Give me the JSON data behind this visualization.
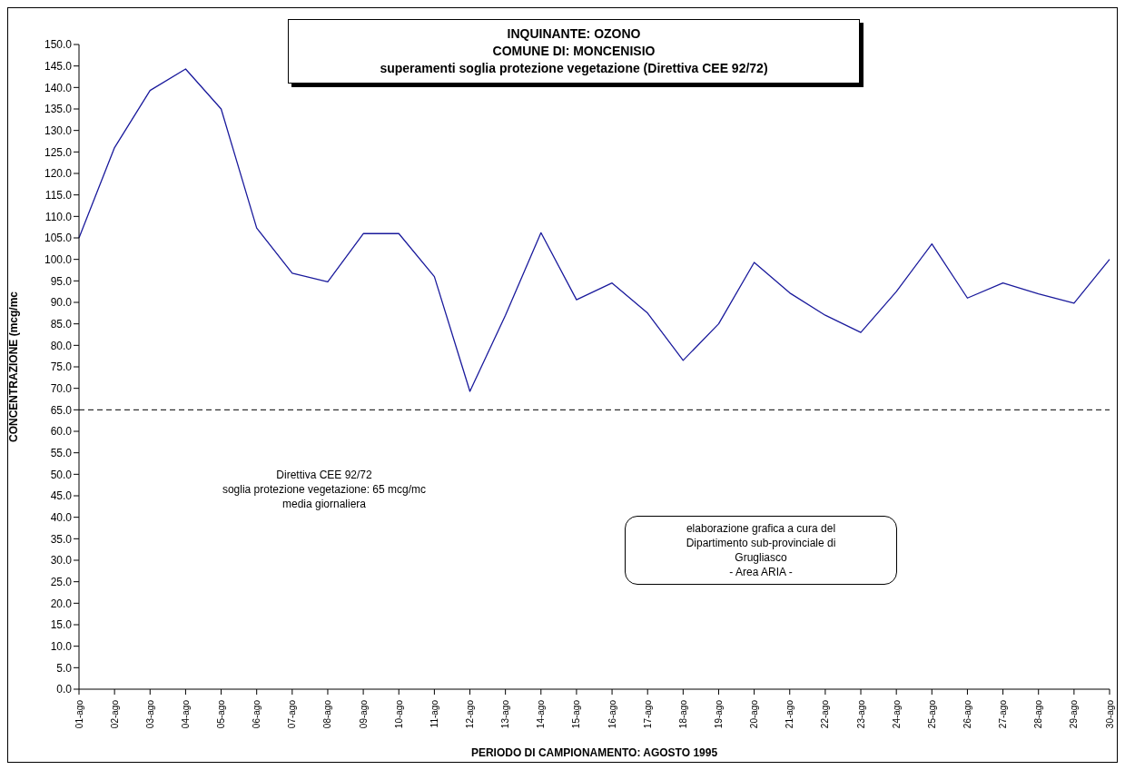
{
  "chart_data": {
    "type": "line",
    "title": "INQUINANTE: OZONO\nCOMUNE DI: MONCENISIO\nsuperamenti soglia protezione vegetazione (Direttiva CEE 92/72)",
    "xlabel": "PERIODO DI CAMPIONAMENTO: AGOSTO 1995",
    "ylabel": "CONCENTRAZIONE (mcg/mc",
    "categories": [
      "01-ago",
      "02-ago",
      "03-ago",
      "04-ago",
      "05-ago",
      "06-ago",
      "07-ago",
      "08-ago",
      "09-ago",
      "10-ago",
      "11-ago",
      "12-ago",
      "13-ago",
      "14-ago",
      "15-ago",
      "16-ago",
      "17-ago",
      "18-ago",
      "19-ago",
      "20-ago",
      "21-ago",
      "22-ago",
      "23-ago",
      "24-ago",
      "25-ago",
      "26-ago",
      "27-ago",
      "28-ago",
      "29-ago",
      "30-ago"
    ],
    "series": [
      {
        "color": "#1a1a9c",
        "values": [
          105,
          126,
          139.3,
          144.3,
          135,
          107.3,
          96.8,
          94.8,
          106,
          106,
          96,
          69.3,
          87,
          106.2,
          90.6,
          94.5,
          87.5,
          76.5,
          85,
          99.3,
          92.2,
          87,
          83,
          92.5,
          103.6,
          91,
          94.5,
          92,
          89.8,
          100
        ]
      }
    ],
    "ylim": [
      0,
      150
    ],
    "yticks": [
      {
        "value": 0,
        "label": "0.0"
      },
      {
        "value": 5,
        "label": "5.0"
      },
      {
        "value": 10,
        "label": "10.0"
      },
      {
        "value": 15,
        "label": "15.0"
      },
      {
        "value": 20,
        "label": "20.0"
      },
      {
        "value": 25,
        "label": "25.0"
      },
      {
        "value": 30,
        "label": "30.0"
      },
      {
        "value": 35,
        "label": "35.0"
      },
      {
        "value": 40,
        "label": "40.0"
      },
      {
        "value": 45,
        "label": "45.0"
      },
      {
        "value": 50,
        "label": "50.0"
      },
      {
        "value": 55,
        "label": "55.0"
      },
      {
        "value": 60,
        "label": "60.0"
      },
      {
        "value": 65,
        "label": "65.0"
      },
      {
        "value": 70,
        "label": "70.0"
      },
      {
        "value": 75,
        "label": "75.0"
      },
      {
        "value": 80,
        "label": "80.0"
      },
      {
        "value": 85,
        "label": "85.0"
      },
      {
        "value": 90,
        "label": "90.0"
      },
      {
        "value": 95,
        "label": "95.0"
      },
      {
        "value": 100,
        "label": "100.0"
      },
      {
        "value": 105,
        "label": "105.0"
      },
      {
        "value": 110,
        "label": "110.0"
      },
      {
        "value": 115,
        "label": "115.0"
      },
      {
        "value": 120,
        "label": "120.0"
      },
      {
        "value": 125,
        "label": "125.0"
      },
      {
        "value": 130,
        "label": "130.0"
      },
      {
        "value": 135,
        "label": "135.0"
      },
      {
        "value": 140,
        "label": "140.0"
      },
      {
        "value": 145,
        "label": "145.0"
      },
      {
        "value": 150,
        "label": "150.0"
      }
    ],
    "ref_lines": [
      {
        "axis": "y",
        "value": 65,
        "label": "Direttiva CEE 92/72\nsoglia protezione vegetazione: 65 mcg/mc\nmedia giornaliera",
        "color": "#000000",
        "line_style": "dashed"
      }
    ],
    "annotations": [
      "elaborazione grafica a cura del\nDipartimento sub-provinciale di\nGrugliasco\n- Area ARIA -"
    ],
    "grid": false,
    "legend": false,
    "marker": "none",
    "line_style": "solid"
  }
}
